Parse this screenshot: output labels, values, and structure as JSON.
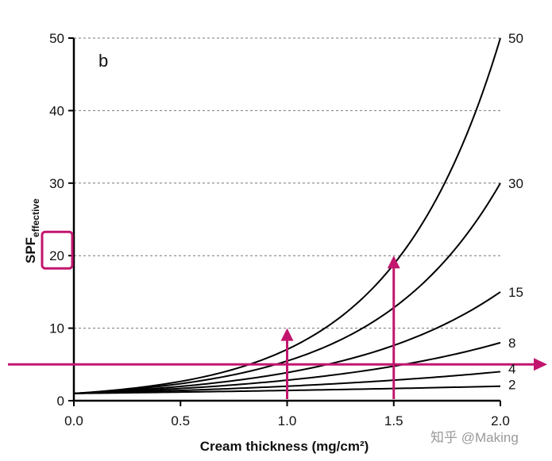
{
  "chart_data": {
    "type": "line",
    "panel_label": "b",
    "xlabel": "Cream thickness (mg/cm²)",
    "ylabel": "SPF",
    "ylabel_subscript": "effective",
    "xlim": [
      0,
      2
    ],
    "ylim": [
      0,
      50
    ],
    "x_ticks": [
      {
        "value": 0,
        "label": "0.0"
      },
      {
        "value": 0.5,
        "label": "0.5"
      },
      {
        "value": 1,
        "label": "1.0"
      },
      {
        "value": 1.5,
        "label": "1.5"
      },
      {
        "value": 2,
        "label": "2.0"
      }
    ],
    "y_ticks": [
      {
        "value": 0,
        "label": "0"
      },
      {
        "value": 10,
        "label": "10"
      },
      {
        "value": 20,
        "label": "20"
      },
      {
        "value": 30,
        "label": "30"
      },
      {
        "value": 40,
        "label": "40"
      },
      {
        "value": 50,
        "label": "50"
      }
    ],
    "grid": "dashed horizontal lines at major y ticks",
    "series": [
      {
        "name": "50",
        "spf": 50
      },
      {
        "name": "30",
        "spf": 30
      },
      {
        "name": "15",
        "spf": 15
      },
      {
        "name": "8",
        "spf": 8
      },
      {
        "name": "4",
        "spf": 4
      },
      {
        "name": "2",
        "spf": 2
      }
    ],
    "annotations": {
      "color": "#c2166e",
      "horizontal_arrow_y": 5,
      "vertical_arrows": [
        {
          "x": 1.0,
          "y_top": 10
        },
        {
          "x": 1.5,
          "y_top": 20
        }
      ],
      "highlighted_tick": 20
    }
  },
  "watermark": "知乎 @Making"
}
